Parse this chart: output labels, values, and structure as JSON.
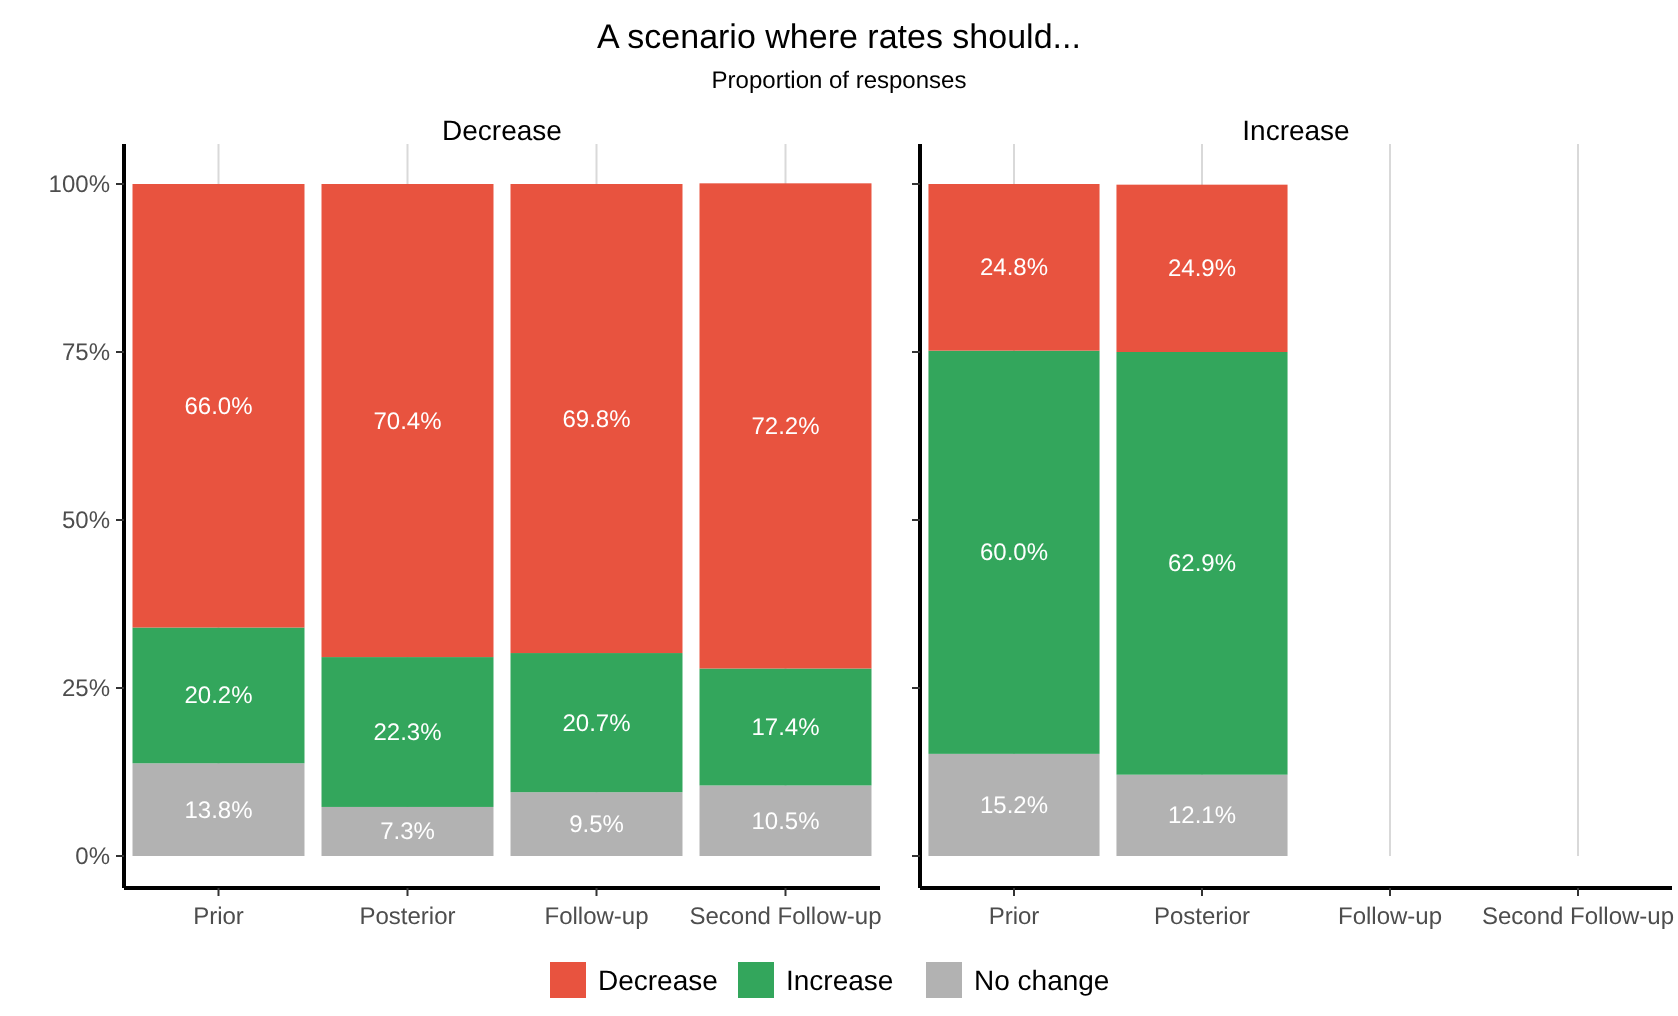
{
  "chart_data": [
    {
      "type": "bar",
      "title": "Decrease",
      "annotations": [
        "A scenario where rates should...",
        "Proportion of responses"
      ],
      "stacked": true,
      "categories": [
        "Prior",
        "Posterior",
        "Follow-up",
        "Second Follow-up"
      ],
      "series": [
        {
          "name": "No change",
          "color": "#b2b2b2",
          "values": [
            13.8,
            7.3,
            9.5,
            10.5
          ],
          "value_labels": [
            "13.8%",
            "7.3%",
            "9.5%",
            "10.5%"
          ]
        },
        {
          "name": "Increase",
          "color": "#33a65c",
          "values": [
            20.2,
            22.3,
            20.7,
            17.4
          ],
          "value_labels": [
            "20.2%",
            "22.3%",
            "20.7%",
            "17.4%"
          ]
        },
        {
          "name": "Decrease",
          "color": "#e8533f",
          "values": [
            66.0,
            70.4,
            69.8,
            72.2
          ],
          "value_labels": [
            "66.0%",
            "70.4%",
            "69.8%",
            "72.2%"
          ]
        }
      ],
      "ylim": [
        0,
        100
      ],
      "yticks": [
        {
          "value": 0,
          "label": "0%"
        },
        {
          "value": 25,
          "label": "25%"
        },
        {
          "value": 50,
          "label": "50%"
        },
        {
          "value": 75,
          "label": "75%"
        },
        {
          "value": 100,
          "label": "100%"
        }
      ],
      "grid": "x",
      "legend": "bottom"
    },
    {
      "type": "bar",
      "title": "Increase",
      "stacked": true,
      "categories": [
        "Prior",
        "Posterior",
        "Follow-up",
        "Second Follow-up"
      ],
      "series": [
        {
          "color": "#b2b2b2",
          "values": [
            15.2,
            12.1,
            null,
            null
          ],
          "value_labels": [
            "15.2%",
            "12.1%",
            null,
            null
          ]
        },
        {
          "color": "#33a65c",
          "values": [
            60.0,
            62.9,
            null,
            null
          ],
          "value_labels": [
            "60.0%",
            "62.9%",
            null,
            null
          ]
        },
        {
          "color": "#e8533f",
          "values": [
            24.8,
            24.9,
            null,
            null
          ],
          "value_labels": [
            "24.8%",
            "24.9%",
            null,
            null
          ]
        }
      ],
      "ylim": [
        0,
        100
      ],
      "yticks": [
        {
          "value": 0,
          "label": null
        },
        {
          "value": 25,
          "label": null
        },
        {
          "value": 50,
          "label": null
        },
        {
          "value": 75,
          "label": null
        },
        {
          "value": 100,
          "label": null
        }
      ],
      "grid": "x",
      "tick_labels": "x"
    }
  ]
}
